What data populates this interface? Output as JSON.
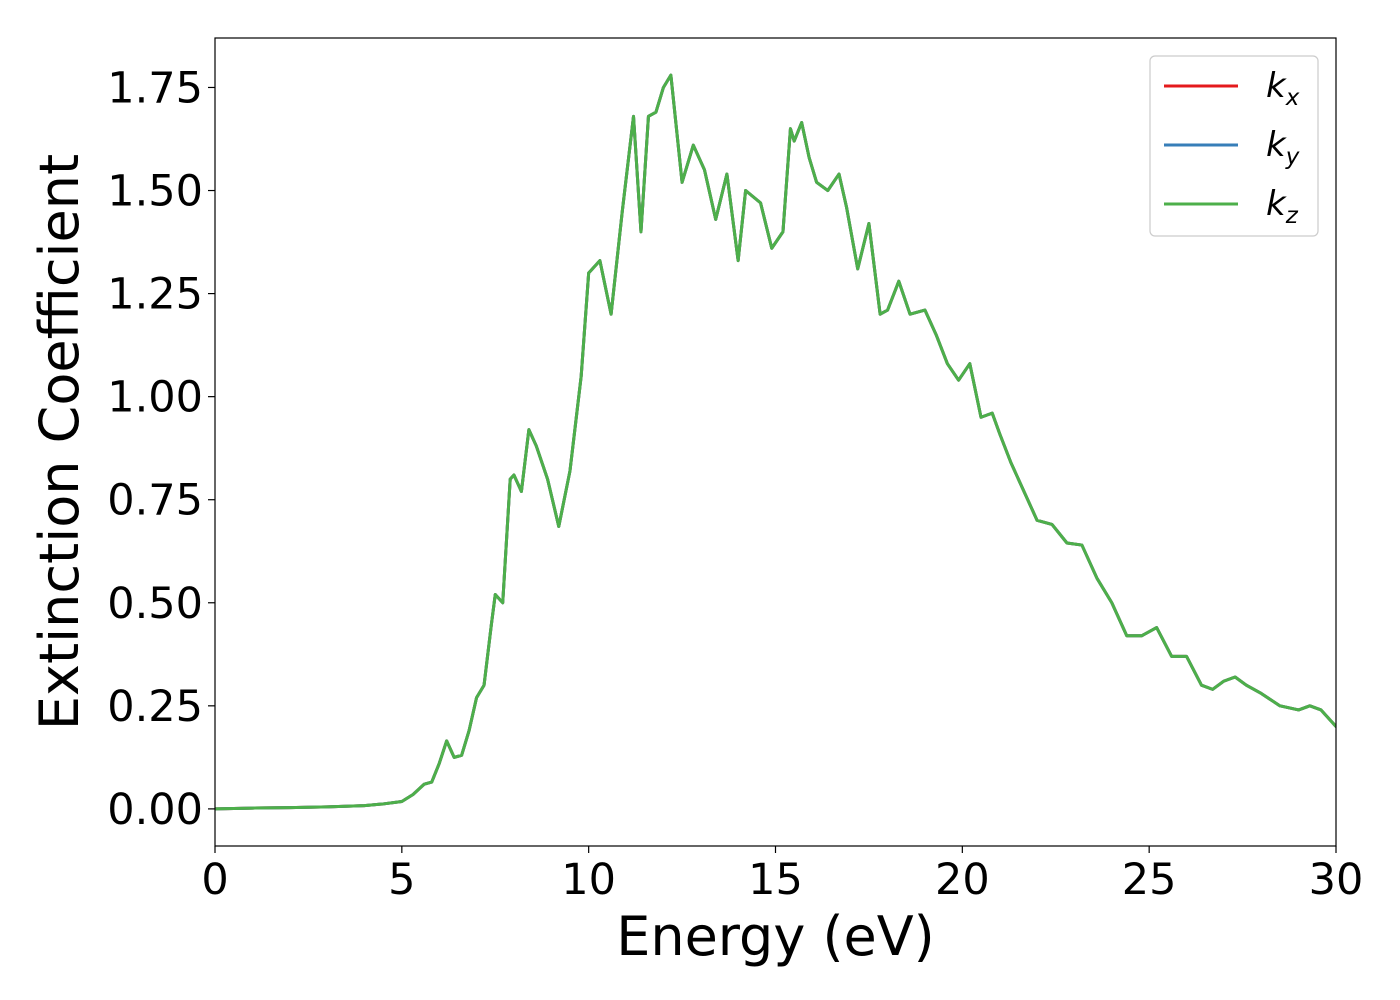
{
  "chart_data": {
    "type": "line",
    "title": "",
    "xlabel": "Energy (eV)",
    "ylabel": "Extinction Coefficient",
    "xlim": [
      0,
      30
    ],
    "ylim": [
      -0.09,
      1.87
    ],
    "xticks": [
      0,
      5,
      10,
      15,
      20,
      25,
      30
    ],
    "xtick_labels": [
      "0",
      "5",
      "10",
      "15",
      "20",
      "25",
      "30"
    ],
    "yticks": [
      0.0,
      0.25,
      0.5,
      0.75,
      1.0,
      1.25,
      1.5,
      1.75
    ],
    "ytick_labels": [
      "0.00",
      "0.25",
      "0.50",
      "0.75",
      "1.00",
      "1.25",
      "1.50",
      "1.75"
    ],
    "grid": false,
    "legend_position": "top-right",
    "x": [
      0,
      1,
      2,
      3,
      4,
      4.5,
      5,
      5.3,
      5.6,
      5.8,
      6.0,
      6.2,
      6.4,
      6.6,
      6.8,
      7.0,
      7.2,
      7.4,
      7.5,
      7.7,
      7.9,
      8.0,
      8.2,
      8.4,
      8.6,
      8.9,
      9.2,
      9.5,
      9.8,
      10.0,
      10.3,
      10.6,
      10.9,
      11.2,
      11.4,
      11.6,
      11.8,
      12.0,
      12.2,
      12.5,
      12.8,
      13.1,
      13.4,
      13.7,
      14.0,
      14.2,
      14.6,
      14.9,
      15.2,
      15.4,
      15.5,
      15.7,
      15.9,
      16.1,
      16.4,
      16.7,
      16.9,
      17.2,
      17.5,
      17.8,
      18.0,
      18.3,
      18.6,
      19.0,
      19.3,
      19.6,
      19.9,
      20.2,
      20.5,
      20.8,
      21.0,
      21.3,
      21.6,
      22.0,
      22.4,
      22.8,
      23.2,
      23.6,
      24.0,
      24.4,
      24.8,
      25.2,
      25.6,
      26.0,
      26.4,
      26.7,
      27.0,
      27.3,
      27.6,
      28.0,
      28.5,
      29.0,
      29.3,
      29.6,
      30.0
    ],
    "series": [
      {
        "name": "k_x",
        "color": "#e41a1c",
        "y": [
          0.0,
          0.002,
          0.003,
          0.005,
          0.008,
          0.012,
          0.018,
          0.035,
          0.06,
          0.065,
          0.11,
          0.165,
          0.125,
          0.13,
          0.19,
          0.27,
          0.3,
          0.45,
          0.52,
          0.5,
          0.8,
          0.81,
          0.77,
          0.92,
          0.88,
          0.8,
          0.685,
          0.82,
          1.05,
          1.3,
          1.33,
          1.2,
          1.45,
          1.68,
          1.4,
          1.68,
          1.69,
          1.75,
          1.78,
          1.52,
          1.61,
          1.55,
          1.43,
          1.54,
          1.33,
          1.5,
          1.47,
          1.36,
          1.4,
          1.65,
          1.62,
          1.665,
          1.58,
          1.52,
          1.5,
          1.54,
          1.46,
          1.31,
          1.42,
          1.2,
          1.21,
          1.28,
          1.2,
          1.21,
          1.15,
          1.08,
          1.04,
          1.08,
          0.95,
          0.96,
          0.91,
          0.84,
          0.78,
          0.7,
          0.69,
          0.645,
          0.64,
          0.56,
          0.5,
          0.42,
          0.42,
          0.44,
          0.37,
          0.37,
          0.3,
          0.29,
          0.31,
          0.32,
          0.3,
          0.28,
          0.25,
          0.24,
          0.25,
          0.24,
          0.2
        ]
      },
      {
        "name": "k_y",
        "color": "#377eb8",
        "y": [
          0.0,
          0.002,
          0.003,
          0.005,
          0.008,
          0.012,
          0.018,
          0.035,
          0.06,
          0.065,
          0.11,
          0.165,
          0.125,
          0.13,
          0.19,
          0.27,
          0.3,
          0.45,
          0.52,
          0.5,
          0.8,
          0.81,
          0.77,
          0.92,
          0.88,
          0.8,
          0.685,
          0.82,
          1.05,
          1.3,
          1.33,
          1.2,
          1.45,
          1.68,
          1.4,
          1.68,
          1.69,
          1.75,
          1.78,
          1.52,
          1.61,
          1.55,
          1.43,
          1.54,
          1.33,
          1.5,
          1.47,
          1.36,
          1.4,
          1.65,
          1.62,
          1.665,
          1.58,
          1.52,
          1.5,
          1.54,
          1.46,
          1.31,
          1.42,
          1.2,
          1.21,
          1.28,
          1.2,
          1.21,
          1.15,
          1.08,
          1.04,
          1.08,
          0.95,
          0.96,
          0.91,
          0.84,
          0.78,
          0.7,
          0.69,
          0.645,
          0.64,
          0.56,
          0.5,
          0.42,
          0.42,
          0.44,
          0.37,
          0.37,
          0.3,
          0.29,
          0.31,
          0.32,
          0.3,
          0.28,
          0.25,
          0.24,
          0.25,
          0.24,
          0.2
        ]
      },
      {
        "name": "k_z",
        "color": "#4daf4a",
        "y": [
          0.0,
          0.002,
          0.003,
          0.005,
          0.008,
          0.012,
          0.018,
          0.035,
          0.06,
          0.065,
          0.11,
          0.165,
          0.125,
          0.13,
          0.19,
          0.27,
          0.3,
          0.45,
          0.52,
          0.5,
          0.8,
          0.81,
          0.77,
          0.92,
          0.88,
          0.8,
          0.685,
          0.82,
          1.05,
          1.3,
          1.33,
          1.2,
          1.45,
          1.68,
          1.4,
          1.68,
          1.69,
          1.75,
          1.78,
          1.52,
          1.61,
          1.55,
          1.43,
          1.54,
          1.33,
          1.5,
          1.47,
          1.36,
          1.4,
          1.65,
          1.62,
          1.665,
          1.58,
          1.52,
          1.5,
          1.54,
          1.46,
          1.31,
          1.42,
          1.2,
          1.21,
          1.28,
          1.2,
          1.21,
          1.15,
          1.08,
          1.04,
          1.08,
          0.95,
          0.96,
          0.91,
          0.84,
          0.78,
          0.7,
          0.69,
          0.645,
          0.64,
          0.56,
          0.5,
          0.42,
          0.42,
          0.44,
          0.37,
          0.37,
          0.3,
          0.29,
          0.31,
          0.32,
          0.3,
          0.28,
          0.25,
          0.24,
          0.25,
          0.24,
          0.2
        ]
      }
    ],
    "legend": [
      {
        "base": "k",
        "sub": "x",
        "color": "#e41a1c"
      },
      {
        "base": "k",
        "sub": "y",
        "color": "#377eb8"
      },
      {
        "base": "k",
        "sub": "z",
        "color": "#4daf4a"
      }
    ]
  }
}
